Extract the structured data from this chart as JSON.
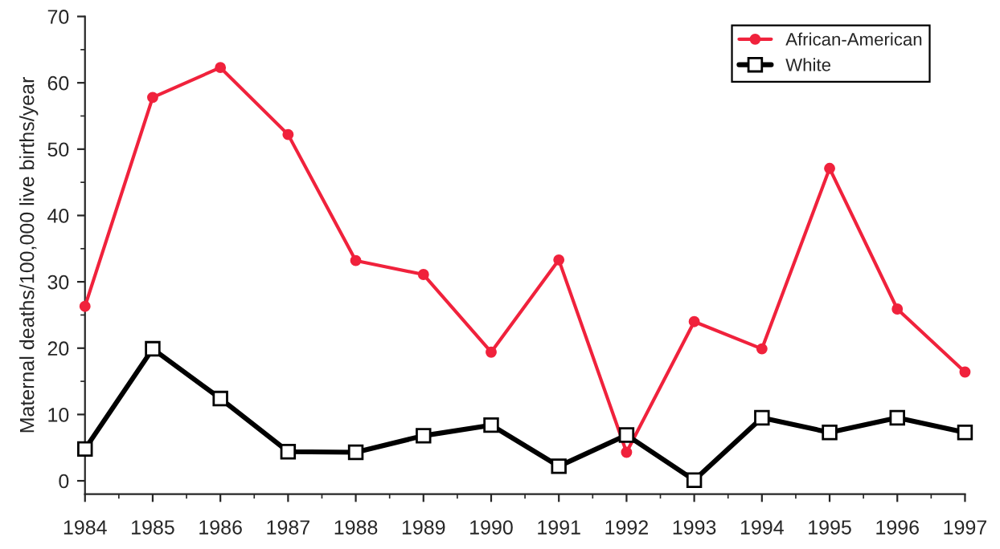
{
  "chart_data": {
    "type": "line",
    "ylabel": "Maternal deaths/100,000 live births/year",
    "x": [
      1984,
      1985,
      1986,
      1987,
      1988,
      1989,
      1990,
      1991,
      1992,
      1993,
      1994,
      1995,
      1996,
      1997
    ],
    "series": [
      {
        "name": "African-American",
        "color": "#f0223c",
        "marker": "circle",
        "values": [
          26.3,
          57.8,
          62.3,
          52.2,
          33.2,
          31.1,
          19.4,
          33.3,
          4.3,
          24.0,
          19.9,
          47.1,
          25.9,
          16.4
        ]
      },
      {
        "name": "White",
        "color": "#000000",
        "marker": "square",
        "values": [
          4.8,
          19.9,
          12.4,
          4.4,
          4.3,
          6.8,
          8.4,
          2.2,
          6.9,
          0.1,
          9.5,
          7.3,
          9.5,
          7.3
        ]
      }
    ],
    "xlim": [
      1984,
      1997
    ],
    "xticks": [
      1984,
      1985,
      1986,
      1987,
      1988,
      1989,
      1990,
      1991,
      1992,
      1993,
      1994,
      1995,
      1996,
      1997
    ],
    "ylim": [
      -2,
      70
    ],
    "yticks": [
      0,
      10,
      20,
      30,
      40,
      50,
      60,
      70
    ],
    "grid": false,
    "legend": "top right",
    "line_style": "solid"
  }
}
